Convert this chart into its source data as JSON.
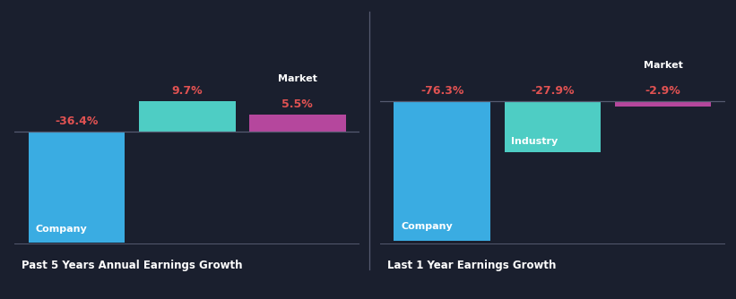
{
  "bg_color": "#1a1f2e",
  "chart1": {
    "title": "Past 5 Years Annual Earnings Growth",
    "bars": [
      {
        "value": -36.4,
        "label": "Company",
        "color": "#3aace2",
        "show_label": true
      },
      {
        "value": 9.7,
        "label": null,
        "color": "#4ecdc4",
        "show_label": false
      },
      {
        "value": 5.5,
        "label": "Market",
        "color": "#b5479d",
        "show_label": false
      }
    ]
  },
  "chart2": {
    "title": "Last 1 Year Earnings Growth",
    "bars": [
      {
        "value": -76.3,
        "label": "Company",
        "color": "#3aace2",
        "show_label": true
      },
      {
        "value": -27.9,
        "label": "Industry",
        "color": "#4ecdc4",
        "show_label": true
      },
      {
        "value": -2.9,
        "label": "Market",
        "color": "#b5479d",
        "show_label": false
      }
    ]
  },
  "value_color": "#e05252",
  "label_color": "#ffffff",
  "title_color": "#ffffff",
  "market_label_color": "#ffffff",
  "baseline_color": "#555a70",
  "bottom_line_color": "#555a70",
  "divider_color": "#555a70"
}
